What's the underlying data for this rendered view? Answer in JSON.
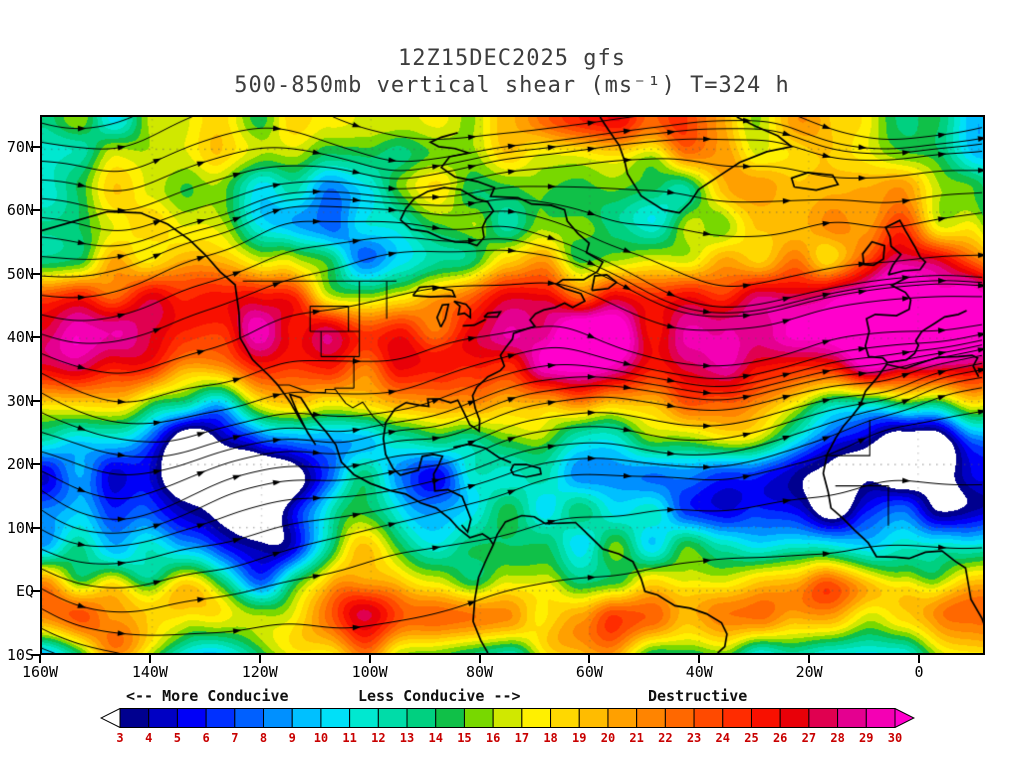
{
  "chart_data": {
    "type": "heatmap",
    "map_projection": "latlon",
    "title": "12Z15DEC2025 gfs",
    "subtitle": "500-850mb vertical shear (ms⁻¹) T=324 h",
    "model": "gfs",
    "run": "12Z15DEC2025",
    "layer": "500-850mb",
    "variable": "vertical shear",
    "units": "ms⁻¹",
    "forecast_hour_label": "T=324 h",
    "lat_ticks": [
      "70N",
      "60N",
      "50N",
      "40N",
      "30N",
      "20N",
      "10N",
      "EQ",
      "10S"
    ],
    "lat_values": [
      70,
      60,
      50,
      40,
      30,
      20,
      10,
      0,
      -10
    ],
    "lon_ticks": [
      "160W",
      "140W",
      "120W",
      "100W",
      "80W",
      "60W",
      "40W",
      "20W",
      "0"
    ],
    "lon_values": [
      -160,
      -140,
      -120,
      -100,
      -80,
      -60,
      -40,
      -20,
      0
    ],
    "annotations": [
      "<-- More Conducive",
      "Less Conducive -->",
      "Destructive"
    ],
    "colorbar": {
      "tick_labels": [
        "3",
        "4",
        "5",
        "6",
        "7",
        "8",
        "9",
        "10",
        "11",
        "12",
        "13",
        "14",
        "15",
        "16",
        "17",
        "18",
        "19",
        "20",
        "21",
        "22",
        "23",
        "24",
        "25",
        "26",
        "27",
        "28",
        "29",
        "30"
      ],
      "tick_color": "#C80000",
      "under_color": "#FFFFFF",
      "over_color": "#FF00CC",
      "segment_colors": [
        "#00008F",
        "#0000C4",
        "#0000F8",
        "#0030FF",
        "#0060FF",
        "#0090FF",
        "#00C0FF",
        "#00E0F8",
        "#00E8D0",
        "#00DCA8",
        "#00D080",
        "#10C048",
        "#78D800",
        "#D0E800",
        "#FFF000",
        "#FFD800",
        "#FFBC00",
        "#FFA000",
        "#FF8400",
        "#FF6800",
        "#FF4A00",
        "#FF2C00",
        "#F81000",
        "#E80008",
        "#E00050",
        "#E40090",
        "#F400B4"
      ]
    }
  }
}
